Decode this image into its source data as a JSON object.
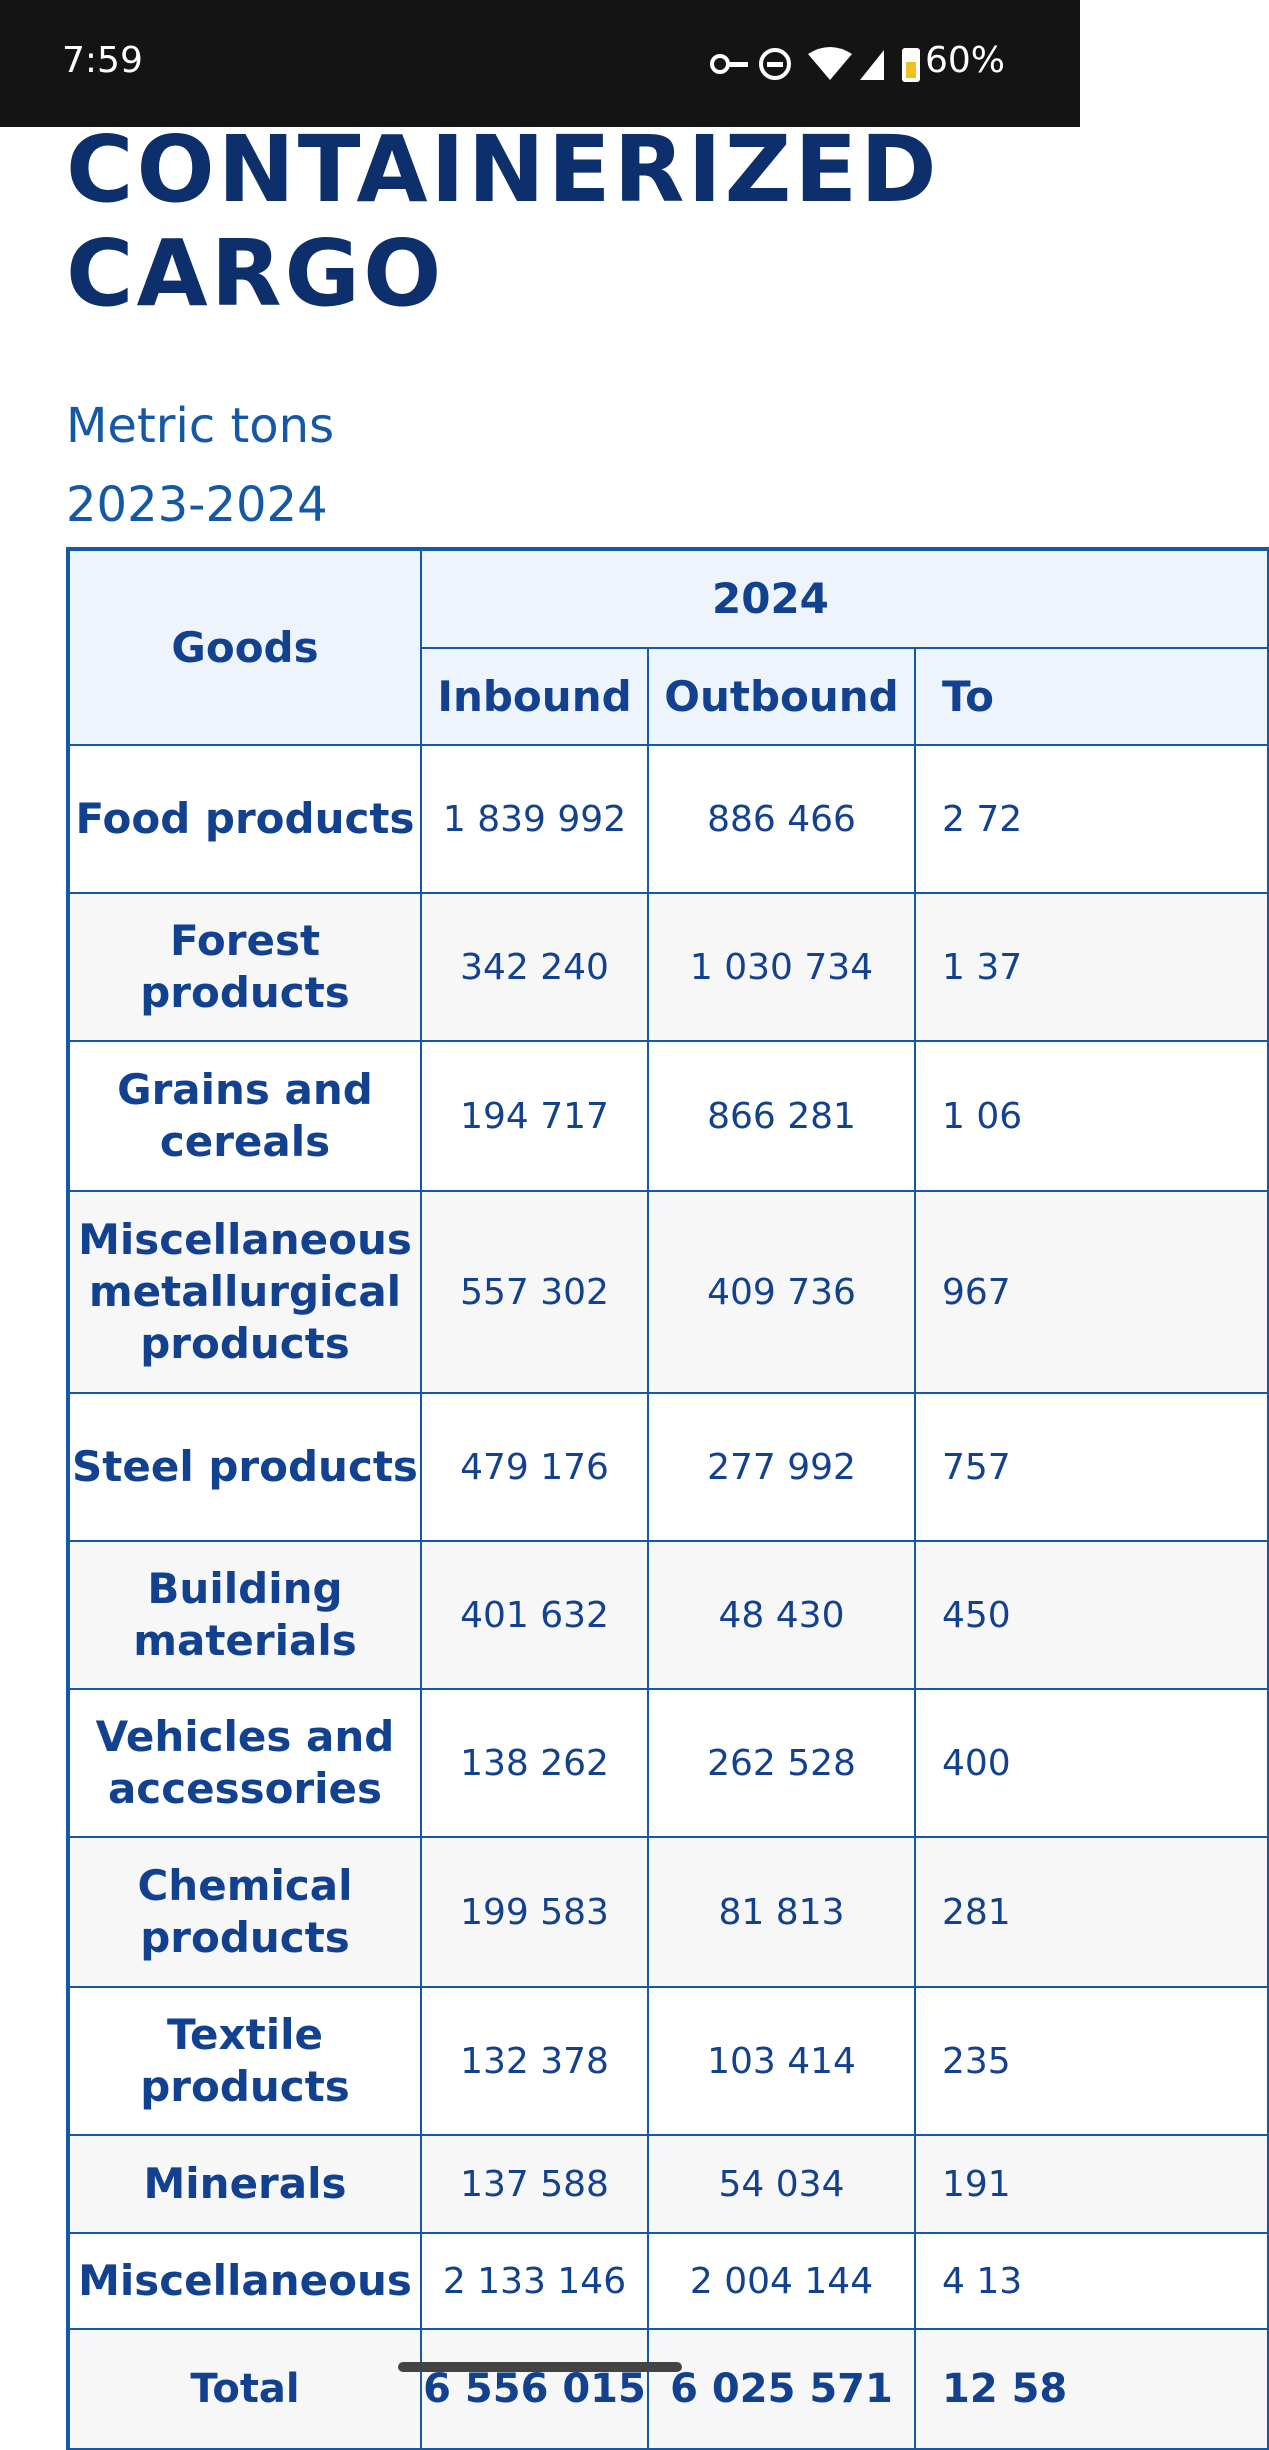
{
  "status": {
    "time": "7:59",
    "battery": "60%"
  },
  "title": "CONTAINERIZED CARGO",
  "subtitle": [
    "Metric tons",
    "2023-2024"
  ],
  "table": {
    "corner": "Goods",
    "group": "2024",
    "columns": [
      "Inbound",
      "Outbound",
      "To"
    ],
    "rows": [
      [
        "Food products",
        "1 839 992",
        "886 466",
        "2 72"
      ],
      [
        "Forest products",
        "342 240",
        "1 030 734",
        "1 37"
      ],
      [
        "Grains and cereals",
        "194 717",
        "866 281",
        "1 06"
      ],
      [
        "Miscellaneous metallurgical products",
        "557 302",
        "409 736",
        "967"
      ],
      [
        "Steel products",
        "479 176",
        "277 992",
        "757"
      ],
      [
        "Building materials",
        "401 632",
        "48 430",
        "450"
      ],
      [
        "Vehicles and accessories",
        "138 262",
        "262 528",
        "400"
      ],
      [
        "Chemical products",
        "199 583",
        "81 813",
        "281"
      ],
      [
        "Textile products",
        "132 378",
        "103 414",
        "235"
      ],
      [
        "Minerals",
        "137 588",
        "54 034",
        "191"
      ],
      [
        "Miscellaneous",
        "2 133 146",
        "2 004 144",
        "4 13"
      ],
      [
        "Total",
        "6 556 015",
        "6 025 571",
        "12 58"
      ]
    ]
  }
}
